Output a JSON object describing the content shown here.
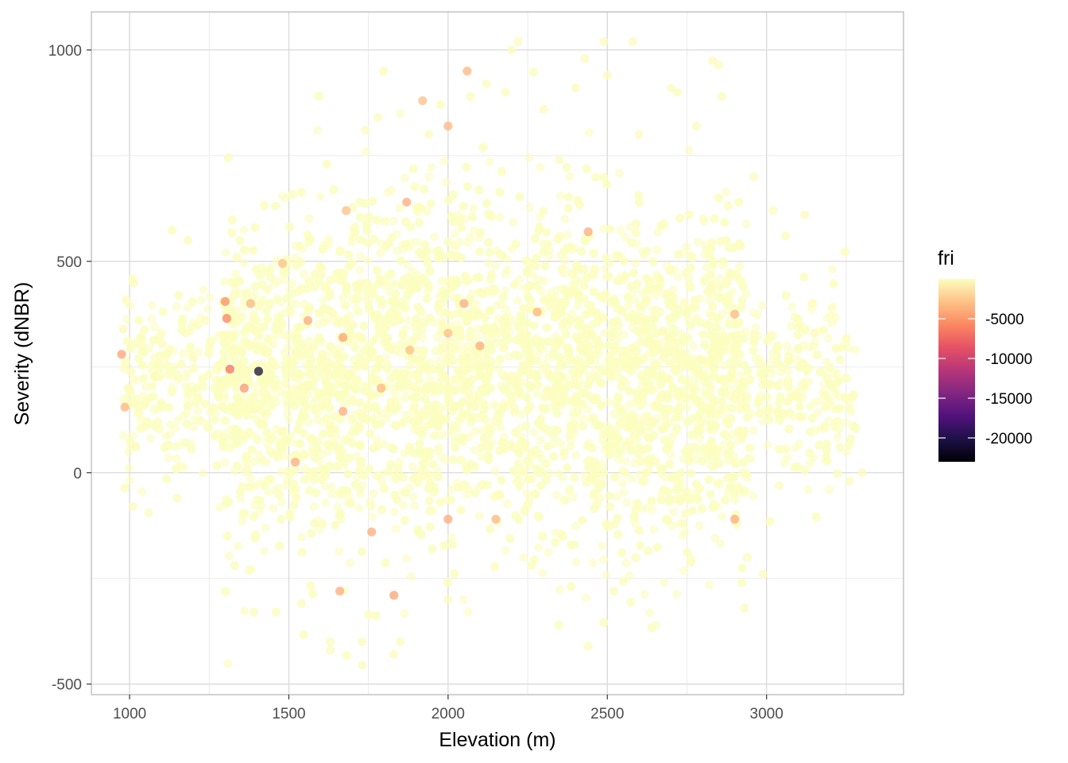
{
  "chart_data": {
    "type": "scatter",
    "title": "",
    "xlabel": "Elevation (m)",
    "ylabel": "Severity (dNBR)",
    "xlim": [
      880,
      3430
    ],
    "ylim": [
      -525,
      1090
    ],
    "x_ticks": [
      1000,
      1500,
      2000,
      2500,
      3000
    ],
    "x_tick_labels": [
      "1000",
      "1500",
      "2000",
      "2500",
      "3000"
    ],
    "y_ticks": [
      -500,
      0,
      500,
      1000
    ],
    "y_tick_labels": [
      "-500",
      "0",
      "500",
      "1000"
    ],
    "grid": true,
    "color_variable": "fri",
    "color_scale": {
      "palette": "magma",
      "range": [
        -23000,
        0
      ],
      "ticks": [
        -5000,
        -10000,
        -15000,
        -20000
      ],
      "tick_labels": [
        "-5000",
        "-10000",
        "-15000",
        "-20000"
      ],
      "stops": [
        "#000004",
        "#1d1147",
        "#51127c",
        "#822681",
        "#b63679",
        "#e65164",
        "#fb8861",
        "#fec287",
        "#fcfdbf"
      ]
    },
    "legend_position": "right",
    "point_color_typical": "#fcfdbf",
    "point_opacity": 0.6,
    "series": [
      {
        "name": "",
        "points": [
          {
            "x": 975,
            "y": 280,
            "c": -4500
          },
          {
            "x": 985,
            "y": 155,
            "c": -3500
          },
          {
            "x": 980,
            "y": 340,
            "c": -200
          },
          {
            "x": 1010,
            "y": -80,
            "c": -100
          },
          {
            "x": 1060,
            "y": -95,
            "c": -100
          },
          {
            "x": 1000,
            "y": 200,
            "c": -100
          },
          {
            "x": 1020,
            "y": 60,
            "c": -100
          },
          {
            "x": 1080,
            "y": 230,
            "c": -100
          },
          {
            "x": 1150,
            "y": -60,
            "c": -100
          },
          {
            "x": 1200,
            "y": 270,
            "c": -100
          },
          {
            "x": 1240,
            "y": 360,
            "c": -100
          },
          {
            "x": 1310,
            "y": 745,
            "c": -100
          },
          {
            "x": 1305,
            "y": 365,
            "c": -6000
          },
          {
            "x": 1300,
            "y": 405,
            "c": -5500
          },
          {
            "x": 1315,
            "y": 245,
            "c": -7000
          },
          {
            "x": 1405,
            "y": 240,
            "c": -21000
          },
          {
            "x": 1360,
            "y": 200,
            "c": -5000
          },
          {
            "x": 1380,
            "y": 400,
            "c": -3500
          },
          {
            "x": 1390,
            "y": -330,
            "c": -100
          },
          {
            "x": 1460,
            "y": -330,
            "c": -100
          },
          {
            "x": 1480,
            "y": 495,
            "c": -3000
          },
          {
            "x": 1520,
            "y": 25,
            "c": -4000
          },
          {
            "x": 1540,
            "y": -310,
            "c": -100
          },
          {
            "x": 1560,
            "y": 360,
            "c": -4000
          },
          {
            "x": 1580,
            "y": -120,
            "c": -100
          },
          {
            "x": 1630,
            "y": -400,
            "c": -100
          },
          {
            "x": 1630,
            "y": -420,
            "c": -100
          },
          {
            "x": 1660,
            "y": -280,
            "c": -4000
          },
          {
            "x": 1670,
            "y": 320,
            "c": -4500
          },
          {
            "x": 1680,
            "y": 620,
            "c": -3000
          },
          {
            "x": 1670,
            "y": 145,
            "c": -4000
          },
          {
            "x": 1730,
            "y": -400,
            "c": -100
          },
          {
            "x": 1730,
            "y": -455,
            "c": -100
          },
          {
            "x": 1740,
            "y": 810,
            "c": -100
          },
          {
            "x": 1760,
            "y": -140,
            "c": -4000
          },
          {
            "x": 1780,
            "y": 840,
            "c": -100
          },
          {
            "x": 1790,
            "y": 200,
            "c": -3500
          },
          {
            "x": 1830,
            "y": -290,
            "c": -4500
          },
          {
            "x": 1830,
            "y": -430,
            "c": -100
          },
          {
            "x": 1850,
            "y": -400,
            "c": -100
          },
          {
            "x": 1870,
            "y": 640,
            "c": -4000
          },
          {
            "x": 1880,
            "y": 290,
            "c": -3000
          },
          {
            "x": 1920,
            "y": 880,
            "c": -3000
          },
          {
            "x": 1940,
            "y": 800,
            "c": -100
          },
          {
            "x": 2000,
            "y": 820,
            "c": -3500
          },
          {
            "x": 2000,
            "y": 330,
            "c": -3000
          },
          {
            "x": 2000,
            "y": -300,
            "c": -100
          },
          {
            "x": 2000,
            "y": -110,
            "c": -4000
          },
          {
            "x": 2050,
            "y": 400,
            "c": -4000
          },
          {
            "x": 2060,
            "y": 950,
            "c": -3500
          },
          {
            "x": 2070,
            "y": 890,
            "c": -100
          },
          {
            "x": 2100,
            "y": 300,
            "c": -4000
          },
          {
            "x": 2120,
            "y": 920,
            "c": -100
          },
          {
            "x": 2150,
            "y": -110,
            "c": -3500
          },
          {
            "x": 2180,
            "y": 900,
            "c": -100
          },
          {
            "x": 2200,
            "y": 1000,
            "c": -100
          },
          {
            "x": 2220,
            "y": 1020,
            "c": -100
          },
          {
            "x": 2280,
            "y": 380,
            "c": -3500
          },
          {
            "x": 2300,
            "y": 860,
            "c": -100
          },
          {
            "x": 2350,
            "y": 740,
            "c": -100
          },
          {
            "x": 2400,
            "y": 910,
            "c": -100
          },
          {
            "x": 2430,
            "y": 980,
            "c": -100
          },
          {
            "x": 2440,
            "y": 570,
            "c": -4000
          },
          {
            "x": 2440,
            "y": -410,
            "c": -100
          },
          {
            "x": 2490,
            "y": 1020,
            "c": -100
          },
          {
            "x": 2500,
            "y": 940,
            "c": -100
          },
          {
            "x": 2520,
            "y": -280,
            "c": -100
          },
          {
            "x": 2580,
            "y": 1020,
            "c": -100
          },
          {
            "x": 2600,
            "y": 800,
            "c": -100
          },
          {
            "x": 2700,
            "y": 910,
            "c": -100
          },
          {
            "x": 2720,
            "y": 900,
            "c": -100
          },
          {
            "x": 2780,
            "y": 820,
            "c": -100
          },
          {
            "x": 2830,
            "y": 975,
            "c": -100
          },
          {
            "x": 2850,
            "y": 965,
            "c": -100
          },
          {
            "x": 2860,
            "y": 890,
            "c": -100
          },
          {
            "x": 2900,
            "y": 375,
            "c": -3500
          },
          {
            "x": 2900,
            "y": -110,
            "c": -4000
          },
          {
            "x": 2930,
            "y": -320,
            "c": -100
          },
          {
            "x": 2940,
            "y": -200,
            "c": -100
          },
          {
            "x": 2960,
            "y": 700,
            "c": -100
          },
          {
            "x": 2990,
            "y": -240,
            "c": -100
          },
          {
            "x": 3020,
            "y": 620,
            "c": -100
          },
          {
            "x": 3060,
            "y": 560,
            "c": -100
          },
          {
            "x": 3120,
            "y": 610,
            "c": -100
          },
          {
            "x": 3150,
            "y": 330,
            "c": -100
          },
          {
            "x": 3200,
            "y": 210,
            "c": -100
          },
          {
            "x": 3230,
            "y": 60,
            "c": -100
          },
          {
            "x": 3260,
            "y": -20,
            "c": -100
          },
          {
            "x": 3300,
            "y": 0,
            "c": -100
          },
          {
            "x": 3040,
            "y": -30,
            "c": -100
          }
        ]
      }
    ]
  }
}
